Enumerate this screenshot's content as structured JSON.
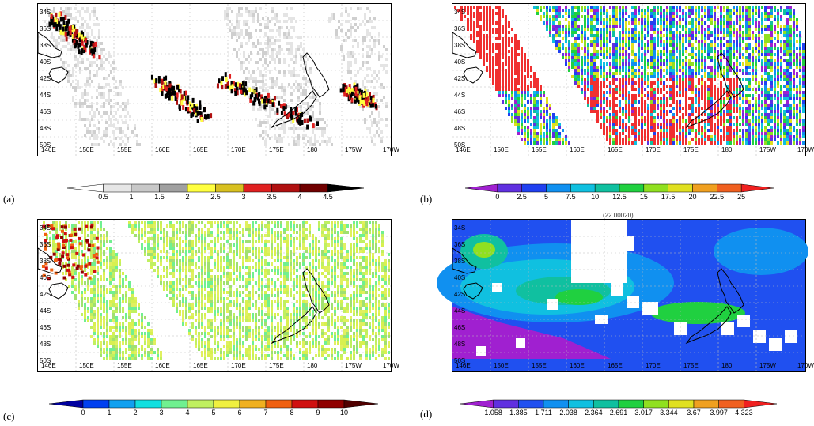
{
  "panels": [
    {
      "letter": "(a)",
      "colorbar_labels": [
        "0.5",
        "1",
        "1.5",
        "2",
        "2.5",
        "3",
        "3.5",
        "4",
        "4.5"
      ],
      "colorbar_colors": [
        "#ffffff",
        "#e6e6e6",
        "#c8c8c8",
        "#a0a0a0",
        "#ffff40",
        "#d8c020",
        "#e02020",
        "#b01010",
        "#700000",
        "#000000"
      ]
    },
    {
      "letter": "(b)",
      "colorbar_labels": [
        "0",
        "2.5",
        "5",
        "7.5",
        "10",
        "12.5",
        "15",
        "17.5",
        "20",
        "22.5",
        "25"
      ],
      "colorbar_colors": [
        "#a020d0",
        "#6030e0",
        "#2040f0",
        "#1090f0",
        "#10c0e0",
        "#10c0a0",
        "#20d040",
        "#90e020",
        "#e0e020",
        "#f0a020",
        "#f06020",
        "#f02020"
      ]
    },
    {
      "letter": "(c)",
      "colorbar_labels": [
        "0",
        "1",
        "2",
        "3",
        "4",
        "5",
        "6",
        "7",
        "8",
        "9",
        "10"
      ],
      "colorbar_colors": [
        "#0000a0",
        "#0040f0",
        "#10a0f0",
        "#10e0e0",
        "#70f090",
        "#c0f060",
        "#f0f040",
        "#f0b020",
        "#f06010",
        "#d01010",
        "#900000",
        "#500000"
      ]
    },
    {
      "letter": "(d)",
      "colorbar_labels": [
        "1.058",
        "1.385",
        "1.711",
        "2.038",
        "2.364",
        "2.691",
        "3.017",
        "3.344",
        "3.67",
        "3.997",
        "4.323"
      ],
      "colorbar_colors": [
        "#a020d0",
        "#6030e0",
        "#2050f0",
        "#1090f0",
        "#10c0e0",
        "#10c0a0",
        "#20d040",
        "#90e020",
        "#e0e020",
        "#f0a020",
        "#f06020",
        "#f02020"
      ]
    }
  ],
  "lat_labels": [
    "34S",
    "36S",
    "38S",
    "40S",
    "42S",
    "44S",
    "46S",
    "48S",
    "50S"
  ],
  "lon_labels": [
    "146E",
    "150E",
    "155E",
    "160E",
    "165E",
    "170E",
    "175E",
    "180",
    "175W",
    "170W"
  ],
  "panel_d_top_label": "(22.00020)"
}
